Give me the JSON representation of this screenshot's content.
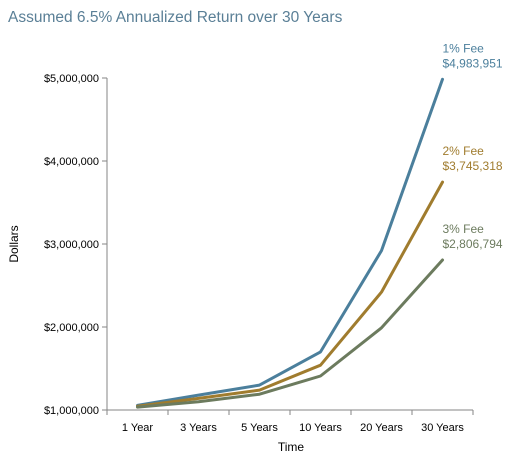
{
  "chart_data": {
    "type": "line",
    "title": "Assumed 6.5% Annualized Return over 30 Years",
    "xlabel": "Time",
    "ylabel": "Dollars",
    "categories": [
      "1 Year",
      "3 Years",
      "5 Years",
      "10 Years",
      "20 Years",
      "30 Years"
    ],
    "yticks": [
      "$1,000,000",
      "$2,000,000",
      "$3,000,000",
      "$4,000,000",
      "$5,000,000"
    ],
    "ylim": [
      1000000,
      5000000
    ],
    "grid": false,
    "legend": "none",
    "series": [
      {
        "name": "1% Fee",
        "color": "#4b7f9c",
        "annotation": "$4,983,951",
        "values": [
          1055000,
          1180000,
          1300000,
          1700000,
          2920000,
          4983951
        ]
      },
      {
        "name": "2% Fee",
        "color": "#a07c2e",
        "annotation": "$3,745,318",
        "values": [
          1045000,
          1140000,
          1240000,
          1540000,
          2420000,
          3745318
        ]
      },
      {
        "name": "3% Fee",
        "color": "#6c7b5e",
        "annotation": "$2,806,794",
        "values": [
          1035000,
          1100000,
          1190000,
          1410000,
          1990000,
          2806794
        ]
      }
    ]
  }
}
